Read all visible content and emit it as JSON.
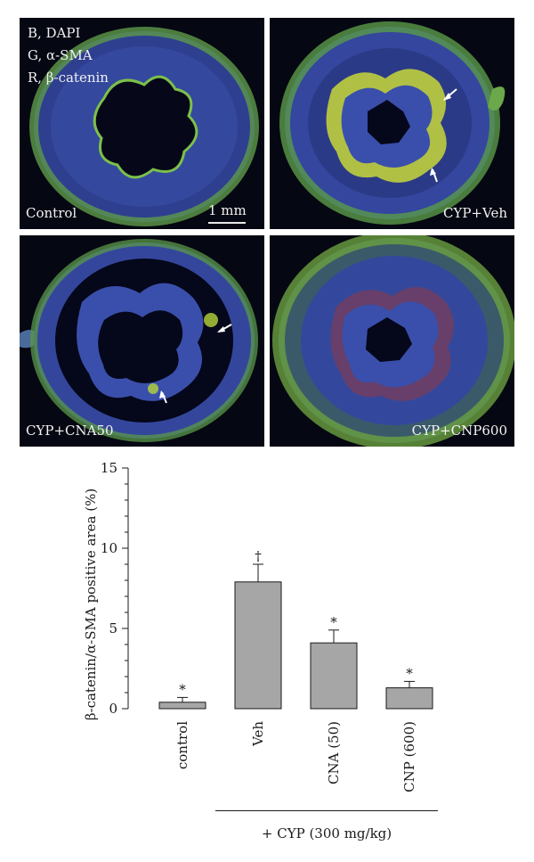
{
  "panels": {
    "legend": [
      "B, DAPI",
      "G, α-SMA",
      "R, β-catenin"
    ],
    "scale_bar": "1 mm",
    "labels": [
      "Control",
      "CYP+Veh",
      "CYP+CNA50",
      "CYP+CNP600"
    ]
  },
  "colors": {
    "panel_bg": "#050712",
    "tissue_blue": "#3f55b8",
    "tissue_green": "#7fbf3a",
    "highlight_yellow": "#d9e83a",
    "bar_fill": "#a6a6a6"
  },
  "chart_data": {
    "type": "bar",
    "categories": [
      "control",
      "Veh",
      "CNA (50)",
      "CNP (600)"
    ],
    "values": [
      0.4,
      7.9,
      4.1,
      1.3
    ],
    "errors": [
      0.3,
      1.1,
      0.8,
      0.4
    ],
    "annotations": [
      "*",
      "†",
      "*",
      "*"
    ],
    "ylabel": "β-catenin/α-SMA positive area (%)",
    "ylim": [
      0,
      15
    ],
    "yticks": [
      "0",
      "5",
      "10",
      "15"
    ],
    "group_caption": "+ CYP (300 mg/kg)",
    "grid": false
  }
}
